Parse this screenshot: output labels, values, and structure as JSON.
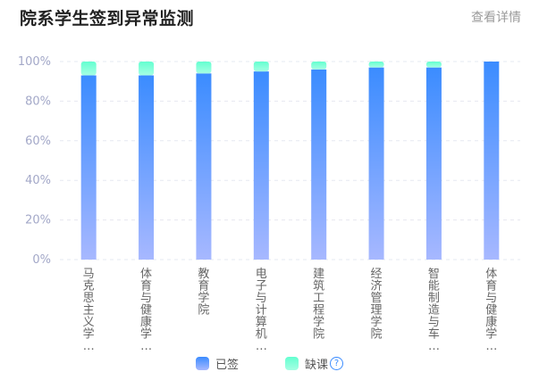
{
  "header": {
    "title": "院系学生签到异常监测",
    "detail_link": "查看详情"
  },
  "colors": {
    "signed_top": "#3b8cff",
    "signed_bottom": "#a7b8ff",
    "absent_top": "#63ffd0",
    "absent_bottom": "#a6ffe3",
    "axis_label": "#a3a8c8",
    "grid": "#e6e8f0",
    "category_label": "#666666"
  },
  "legend": {
    "signed_label": "已签",
    "absent_label": "缺课",
    "help_icon": "question-circle-icon"
  },
  "chart_data": {
    "type": "bar",
    "stacked": true,
    "categories": [
      [
        "马",
        "克",
        "思",
        "主",
        "义",
        "学",
        "…"
      ],
      [
        "体",
        "育",
        "与",
        "健",
        "康",
        "学",
        "…"
      ],
      [
        "教",
        "育",
        "学",
        "院"
      ],
      [
        "电",
        "子",
        "与",
        "计",
        "算",
        "机",
        "…"
      ],
      [
        "建",
        "筑",
        "工",
        "程",
        "学",
        "院"
      ],
      [
        "经",
        "济",
        "管",
        "理",
        "学",
        "院"
      ],
      [
        "智",
        "能",
        "制",
        "造",
        "与",
        "车",
        "…"
      ],
      [
        "体",
        "育",
        "与",
        "健",
        "康",
        "学",
        "…"
      ]
    ],
    "series": [
      {
        "name": "已签",
        "values": [
          93,
          93,
          94,
          95,
          96,
          97,
          97,
          100
        ]
      },
      {
        "name": "缺课",
        "values": [
          7,
          7,
          6,
          5,
          4,
          3,
          3,
          0
        ]
      }
    ],
    "ylim": [
      0,
      100
    ],
    "yticks": [
      "0%",
      "20%",
      "40%",
      "60%",
      "80%",
      "100%"
    ],
    "ytick_values": [
      0,
      20,
      40,
      60,
      80,
      100
    ],
    "grid": true,
    "legend_position": "bottom"
  }
}
